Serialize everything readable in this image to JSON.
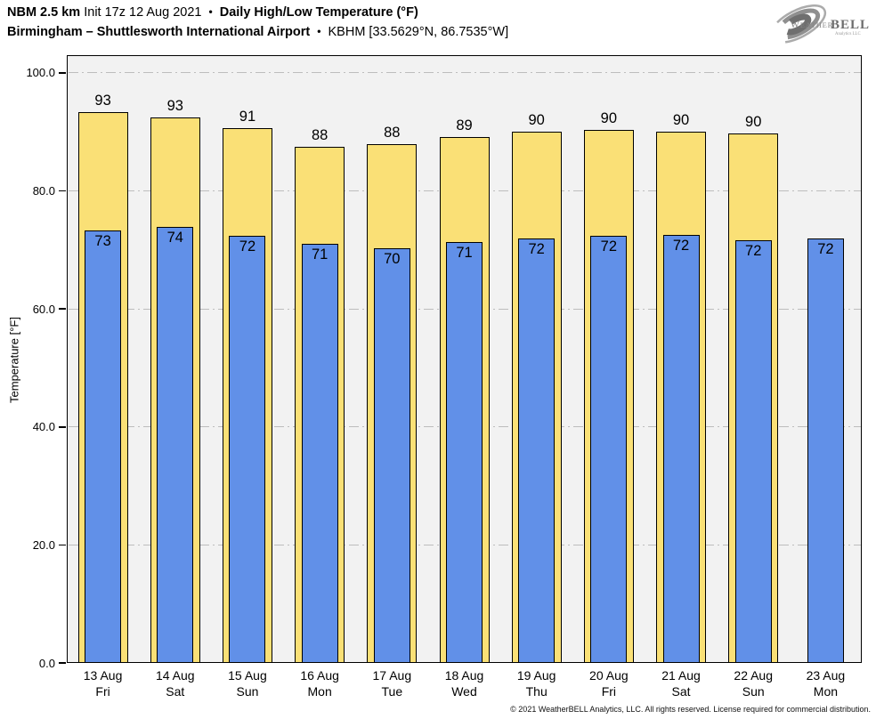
{
  "header": {
    "title_line1": {
      "model": "NBM 2.5 km",
      "init": "Init 17z 12 Aug 2021",
      "separator": "•",
      "product": "Daily High/Low Temperature (°F)"
    },
    "title_line2": {
      "location": "Birmingham – Shuttlesworth International Airport",
      "separator": "•",
      "station": "KBHM [33.5629°N, 86.7535°W]"
    },
    "logo": {
      "brand_weather": "Weather",
      "brand_bell": "BELL",
      "brand_sub": "Analytics LLC"
    }
  },
  "chart_data": {
    "type": "bar",
    "title": "NBM 2.5 km Init 17z 12 Aug 2021 • Daily High/Low Temperature (°F) • Birmingham – Shuttlesworth International Airport • KBHM",
    "xlabel": "",
    "ylabel": "Temperature [°F]",
    "ylim": [
      0,
      103
    ],
    "yticks": [
      0,
      20,
      40,
      60,
      80,
      100
    ],
    "ytick_labels": [
      "0.0",
      "20.0",
      "40.0",
      "60.0",
      "80.0",
      "100.0"
    ],
    "grid": "horizontal dash-dot",
    "legend_position": "none",
    "plot_background": "#f2f2f2",
    "categories": [
      {
        "date": "13 Aug",
        "day": "Fri"
      },
      {
        "date": "14 Aug",
        "day": "Sat"
      },
      {
        "date": "15 Aug",
        "day": "Sun"
      },
      {
        "date": "16 Aug",
        "day": "Mon"
      },
      {
        "date": "17 Aug",
        "day": "Tue"
      },
      {
        "date": "18 Aug",
        "day": "Wed"
      },
      {
        "date": "19 Aug",
        "day": "Thu"
      },
      {
        "date": "20 Aug",
        "day": "Fri"
      },
      {
        "date": "21 Aug",
        "day": "Sat"
      },
      {
        "date": "22 Aug",
        "day": "Sun"
      },
      {
        "date": "23 Aug",
        "day": "Mon"
      }
    ],
    "series": [
      {
        "name": "Daily High",
        "color": "#FAE076",
        "values": [
          93,
          93,
          91,
          88,
          88,
          89,
          90,
          90,
          90,
          90,
          null
        ],
        "values_exact": [
          93.4,
          92.5,
          90.7,
          87.5,
          87.9,
          89.1,
          90.1,
          90.4,
          90.1,
          89.8,
          null
        ]
      },
      {
        "name": "Daily Low",
        "color": "#6190E8",
        "values": [
          73,
          74,
          72,
          71,
          70,
          71,
          72,
          72,
          72,
          72,
          72
        ],
        "values_exact": [
          73.3,
          73.9,
          72.4,
          71.1,
          70.2,
          71.3,
          72.0,
          72.4,
          72.5,
          71.7,
          71.9
        ]
      }
    ]
  },
  "footer": {
    "copyright": "© 2021 WeatherBELL Analytics, LLC. All rights reserved. License required for commercial distribution."
  }
}
